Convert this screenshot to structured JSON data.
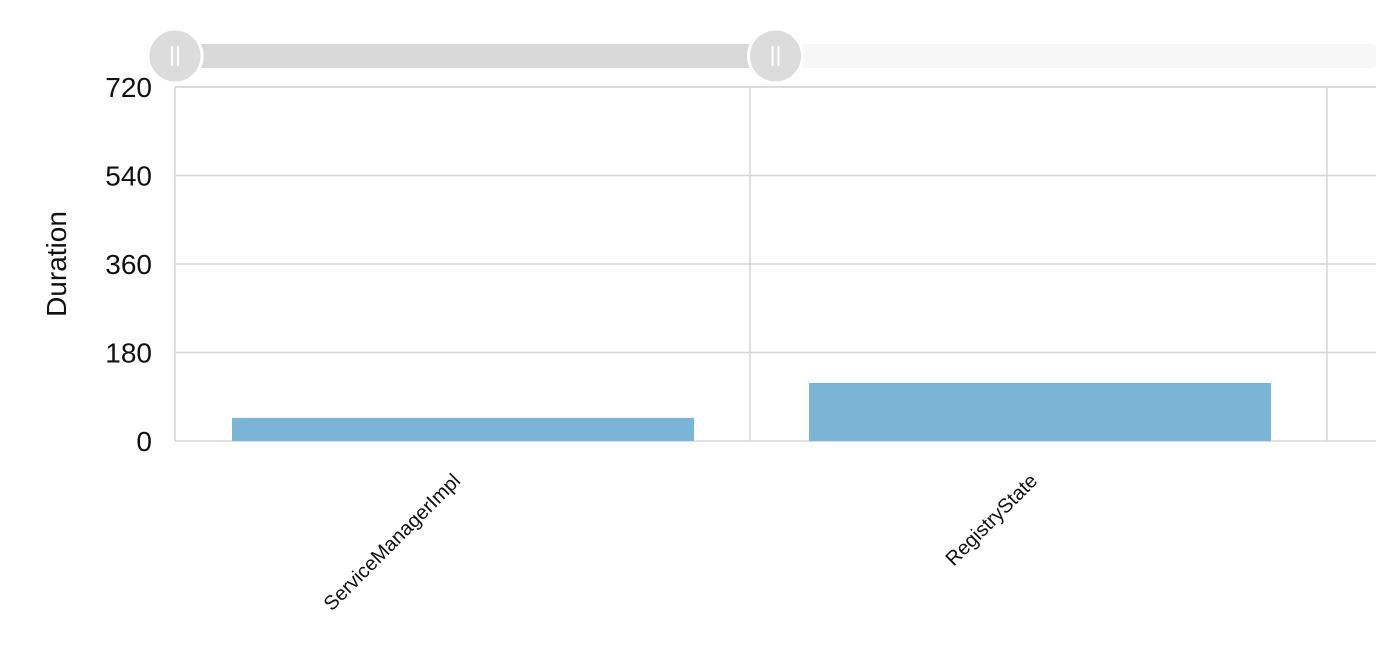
{
  "colors": {
    "bar": "#7ab5d6",
    "grid": "#d6d6d6",
    "slider_selected": "#d9d9d9",
    "slider_track": "#f7f7f7",
    "handle_fill": "#dcdcdc",
    "handle_stroke": "#ffffff"
  },
  "zoom_slider": {
    "start_fraction": 0.0,
    "end_fraction": 0.5
  },
  "chart_data": {
    "type": "bar",
    "title": "",
    "xlabel": "",
    "ylabel": "Duration",
    "categories": [
      "ServiceManagerImpl",
      "RegistryState"
    ],
    "series": [
      {
        "values": [
          47,
          118
        ]
      }
    ],
    "ylim": [
      0,
      720
    ],
    "yticks": [
      "720",
      "540",
      "360",
      "180",
      "0"
    ],
    "grid": true,
    "legend": "none"
  }
}
